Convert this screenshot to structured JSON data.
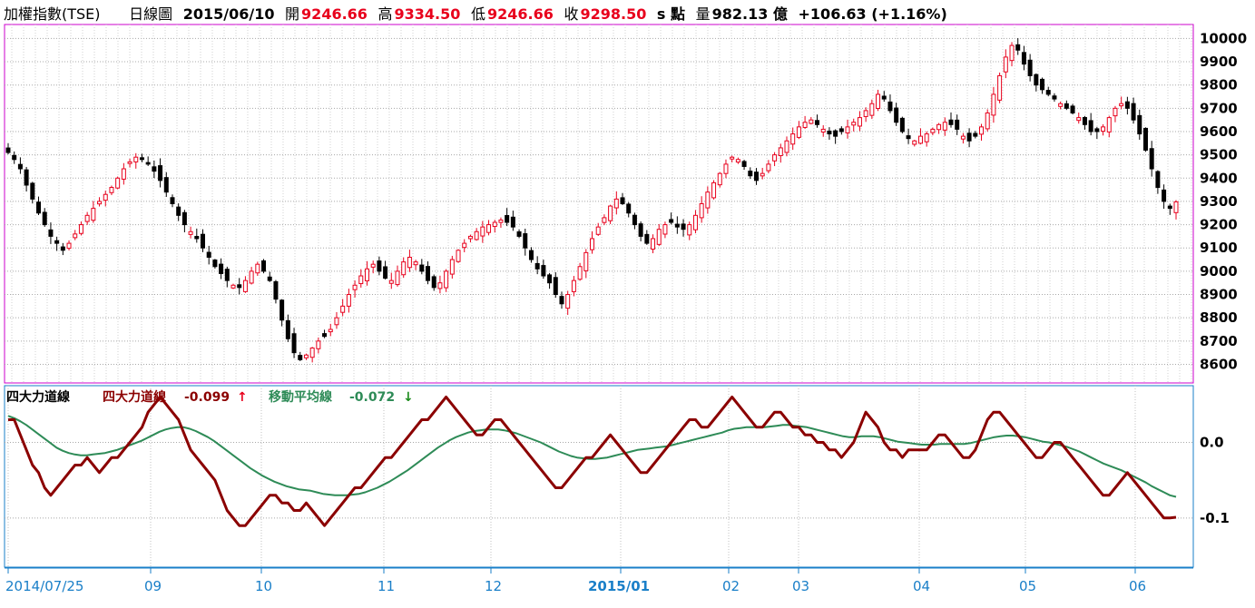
{
  "header": {
    "name": "加權指數(TSE)",
    "period": "日線圖",
    "date": "2015/06/10",
    "open_label": "開",
    "open": "9246.66",
    "high_label": "高",
    "high": "9334.50",
    "low_label": "低",
    "low": "9246.66",
    "close_label": "收",
    "close": "9298.50",
    "unit": "s 點",
    "volume_label": "量",
    "volume": "982.13 億",
    "change": "+106.63 (+1.16%)"
  },
  "indicator": {
    "title": "四大力道線",
    "line_label": "四大力道線",
    "line_value": "-0.099",
    "line_arrow": "↑",
    "ma_label": "移動平均線",
    "ma_value": "-0.072",
    "ma_arrow": "↓"
  },
  "colors": {
    "up": "#e8001c",
    "down": "#000000",
    "line": "#8b0000",
    "ma": "#2e8b57",
    "frame_top": "#cc00cc",
    "frame_bottom": "#1a7fc8",
    "date_text": "#1a7fc8"
  },
  "chart_data": [
    {
      "type": "candlestick",
      "y_ticks": [
        "8600",
        "8700",
        "8800",
        "8900",
        "9000",
        "9100",
        "9200",
        "9300",
        "9400",
        "9500",
        "9600",
        "9700",
        "9800",
        "9900",
        "10000"
      ],
      "ylim": [
        8520,
        10060
      ],
      "grid": true,
      "x_labels": [
        "2014/07/25",
        "09",
        "10",
        "11",
        "12",
        "2015/01",
        "02",
        "03",
        "04",
        "05",
        "06"
      ],
      "close_series": [
        9510,
        9480,
        9440,
        9370,
        9310,
        9250,
        9200,
        9150,
        9120,
        9090,
        9120,
        9160,
        9200,
        9240,
        9270,
        9300,
        9330,
        9360,
        9400,
        9440,
        9470,
        9490,
        9480,
        9460,
        9430,
        9390,
        9340,
        9290,
        9240,
        9200,
        9170,
        9140,
        9100,
        9060,
        9020,
        8990,
        8960,
        8940,
        8930,
        8960,
        9000,
        9030,
        9000,
        8960,
        8880,
        8790,
        8710,
        8650,
        8620,
        8640,
        8670,
        8700,
        8720,
        8750,
        8800,
        8850,
        8900,
        8940,
        8980,
        9010,
        9030,
        9000,
        8970,
        8960,
        9000,
        9040,
        9060,
        9040,
        9000,
        8960,
        8930,
        8950,
        9000,
        9050,
        9090,
        9120,
        9150,
        9170,
        9190,
        9200,
        9210,
        9220,
        9210,
        9190,
        9150,
        9100,
        9050,
        9010,
        8980,
        8950,
        8900,
        8860,
        8900,
        8960,
        9020,
        9080,
        9140,
        9190,
        9230,
        9280,
        9310,
        9290,
        9250,
        9200,
        9150,
        9120,
        9140,
        9180,
        9200,
        9210,
        9190,
        9180,
        9200,
        9240,
        9290,
        9340,
        9380,
        9420,
        9460,
        9490,
        9480,
        9450,
        9410,
        9390,
        9420,
        9460,
        9500,
        9530,
        9560,
        9590,
        9620,
        9640,
        9650,
        9630,
        9610,
        9590,
        9580,
        9600,
        9620,
        9640,
        9660,
        9690,
        9720,
        9760,
        9740,
        9690,
        9640,
        9600,
        9570,
        9560,
        9580,
        9590,
        9610,
        9630,
        9640,
        9630,
        9610,
        9580,
        9560,
        9580,
        9620,
        9680,
        9760,
        9840,
        9920,
        9970,
        9950,
        9890,
        9840,
        9800,
        9780,
        9760,
        9740,
        9720,
        9700,
        9680,
        9660,
        9630,
        9600,
        9600,
        9620,
        9660,
        9700,
        9720,
        9700,
        9650,
        9590,
        9520,
        9440,
        9360,
        9300,
        9270,
        9298
      ]
    },
    {
      "type": "line",
      "y_ticks": [
        "0.0",
        "-0.1"
      ],
      "ylim": [
        -0.165,
        0.075
      ],
      "series": [
        {
          "name": "四大力道線",
          "values": [
            0.03,
            0.03,
            0.01,
            -0.01,
            -0.03,
            -0.04,
            -0.06,
            -0.07,
            -0.06,
            -0.05,
            -0.04,
            -0.03,
            -0.03,
            -0.02,
            -0.03,
            -0.04,
            -0.03,
            -0.02,
            -0.02,
            -0.01,
            0.0,
            0.01,
            0.02,
            0.04,
            0.05,
            0.06,
            0.05,
            0.04,
            0.03,
            0.01,
            -0.01,
            -0.02,
            -0.03,
            -0.04,
            -0.05,
            -0.07,
            -0.09,
            -0.1,
            -0.11,
            -0.11,
            -0.1,
            -0.09,
            -0.08,
            -0.07,
            -0.07,
            -0.08,
            -0.08,
            -0.09,
            -0.09,
            -0.08,
            -0.09,
            -0.1,
            -0.11,
            -0.1,
            -0.09,
            -0.08,
            -0.07,
            -0.06,
            -0.06,
            -0.05,
            -0.04,
            -0.03,
            -0.02,
            -0.02,
            -0.01,
            0.0,
            0.01,
            0.02,
            0.03,
            0.03,
            0.04,
            0.05,
            0.06,
            0.05,
            0.04,
            0.03,
            0.02,
            0.01,
            0.01,
            0.02,
            0.03,
            0.03,
            0.02,
            0.01,
            0.0,
            -0.01,
            -0.02,
            -0.03,
            -0.04,
            -0.05,
            -0.06,
            -0.06,
            -0.05,
            -0.04,
            -0.03,
            -0.02,
            -0.02,
            -0.01,
            0.0,
            0.01,
            0.0,
            -0.01,
            -0.02,
            -0.03,
            -0.04,
            -0.04,
            -0.03,
            -0.02,
            -0.01,
            0.0,
            0.01,
            0.02,
            0.03,
            0.03,
            0.02,
            0.02,
            0.03,
            0.04,
            0.05,
            0.06,
            0.05,
            0.04,
            0.03,
            0.02,
            0.02,
            0.03,
            0.04,
            0.04,
            0.03,
            0.02,
            0.02,
            0.01,
            0.01,
            0.0,
            0.0,
            -0.01,
            -0.01,
            -0.02,
            -0.01,
            0.0,
            0.02,
            0.04,
            0.03,
            0.02,
            0.0,
            -0.01,
            -0.01,
            -0.02,
            -0.01,
            -0.01,
            -0.01,
            -0.01,
            0.0,
            0.01,
            0.01,
            0.0,
            -0.01,
            -0.02,
            -0.02,
            -0.01,
            0.01,
            0.03,
            0.04,
            0.04,
            0.03,
            0.02,
            0.01,
            0.0,
            -0.01,
            -0.02,
            -0.02,
            -0.01,
            0.0,
            0.0,
            -0.01,
            -0.02,
            -0.03,
            -0.04,
            -0.05,
            -0.06,
            -0.07,
            -0.07,
            -0.06,
            -0.05,
            -0.04,
            -0.05,
            -0.06,
            -0.07,
            -0.08,
            -0.09,
            -0.1,
            -0.1,
            -0.099
          ]
        },
        {
          "name": "移動平均線",
          "values": [
            0.035,
            0.032,
            0.028,
            0.023,
            0.017,
            0.011,
            0.005,
            -0.001,
            -0.007,
            -0.011,
            -0.014,
            -0.016,
            -0.017,
            -0.017,
            -0.016,
            -0.015,
            -0.014,
            -0.012,
            -0.01,
            -0.007,
            -0.004,
            -0.001,
            0.002,
            0.006,
            0.01,
            0.014,
            0.017,
            0.019,
            0.02,
            0.02,
            0.018,
            0.015,
            0.011,
            0.007,
            0.002,
            -0.004,
            -0.01,
            -0.016,
            -0.022,
            -0.028,
            -0.034,
            -0.039,
            -0.044,
            -0.048,
            -0.052,
            -0.055,
            -0.058,
            -0.06,
            -0.062,
            -0.063,
            -0.064,
            -0.066,
            -0.068,
            -0.069,
            -0.07,
            -0.07,
            -0.07,
            -0.069,
            -0.068,
            -0.066,
            -0.063,
            -0.06,
            -0.056,
            -0.052,
            -0.047,
            -0.042,
            -0.037,
            -0.031,
            -0.025,
            -0.019,
            -0.013,
            -0.007,
            -0.002,
            0.003,
            0.007,
            0.01,
            0.013,
            0.015,
            0.016,
            0.017,
            0.017,
            0.017,
            0.016,
            0.014,
            0.012,
            0.009,
            0.006,
            0.003,
            0.0,
            -0.004,
            -0.008,
            -0.012,
            -0.015,
            -0.018,
            -0.02,
            -0.021,
            -0.022,
            -0.022,
            -0.021,
            -0.02,
            -0.018,
            -0.016,
            -0.014,
            -0.012,
            -0.01,
            -0.009,
            -0.008,
            -0.007,
            -0.006,
            -0.005,
            -0.003,
            -0.001,
            0.001,
            0.003,
            0.005,
            0.007,
            0.009,
            0.011,
            0.013,
            0.016,
            0.018,
            0.019,
            0.02,
            0.02,
            0.02,
            0.02,
            0.021,
            0.022,
            0.023,
            0.023,
            0.022,
            0.021,
            0.02,
            0.018,
            0.016,
            0.014,
            0.012,
            0.01,
            0.008,
            0.007,
            0.007,
            0.008,
            0.008,
            0.008,
            0.007,
            0.005,
            0.003,
            0.001,
            0.0,
            -0.001,
            -0.002,
            -0.003,
            -0.003,
            -0.003,
            -0.002,
            -0.002,
            -0.002,
            -0.002,
            -0.002,
            -0.001,
            0.001,
            0.003,
            0.005,
            0.007,
            0.008,
            0.009,
            0.009,
            0.008,
            0.007,
            0.005,
            0.003,
            0.001,
            0.0,
            -0.002,
            -0.004,
            -0.006,
            -0.009,
            -0.012,
            -0.016,
            -0.02,
            -0.024,
            -0.028,
            -0.031,
            -0.034,
            -0.037,
            -0.041,
            -0.045,
            -0.049,
            -0.053,
            -0.058,
            -0.062,
            -0.066,
            -0.07,
            -0.072
          ]
        }
      ]
    }
  ]
}
